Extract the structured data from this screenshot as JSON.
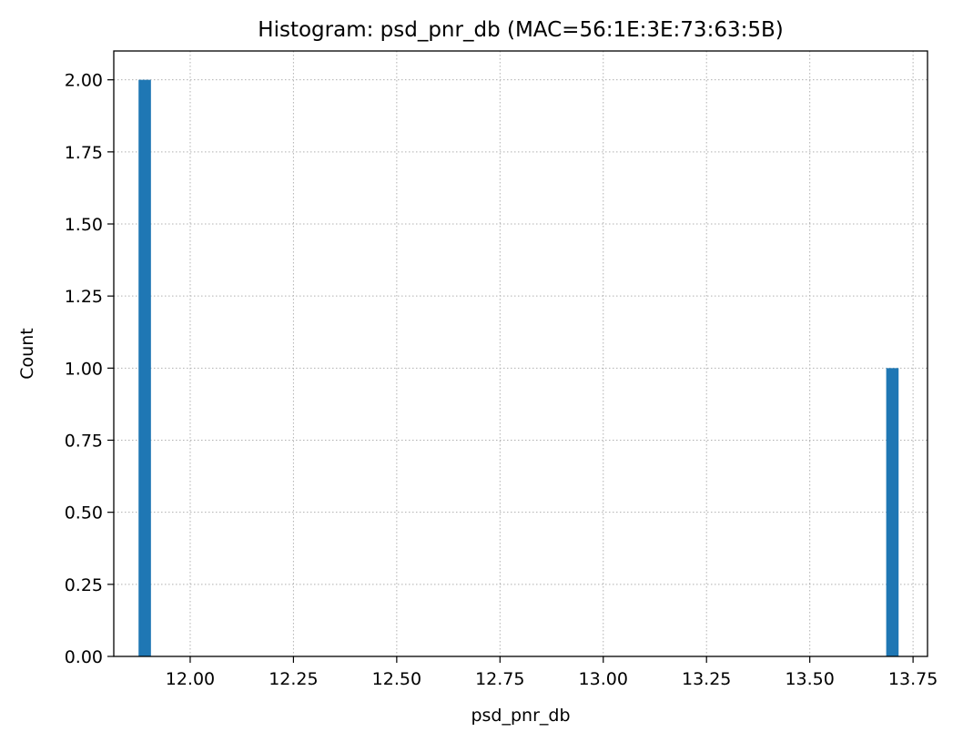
{
  "chart_data": {
    "type": "bar",
    "title": "Histogram: psd_pnr_db (MAC=56:1E:3E:73:63:5B)",
    "xlabel": "psd_pnr_db",
    "ylabel": "Count",
    "xlim": [
      11.815,
      13.785
    ],
    "ylim": [
      0,
      2.1
    ],
    "x_ticks": [
      12.0,
      12.25,
      12.5,
      12.75,
      13.0,
      13.25,
      13.5,
      13.75
    ],
    "x_tick_labels": [
      "12.00",
      "12.25",
      "12.50",
      "12.75",
      "13.00",
      "13.25",
      "13.50",
      "13.75"
    ],
    "y_ticks": [
      0,
      0.25,
      0.5,
      0.75,
      1.0,
      1.25,
      1.5,
      1.75,
      2.0
    ],
    "y_tick_labels": [
      "0.00",
      "0.25",
      "0.50",
      "0.75",
      "1.00",
      "1.25",
      "1.50",
      "1.75",
      "2.00"
    ],
    "bins": [
      {
        "x0": 11.875,
        "x1": 11.905,
        "count": 2
      },
      {
        "x0": 13.685,
        "x1": 13.715,
        "count": 1
      }
    ],
    "grid": true,
    "grid_style": "dotted",
    "bar_color": "#1f77b4"
  }
}
